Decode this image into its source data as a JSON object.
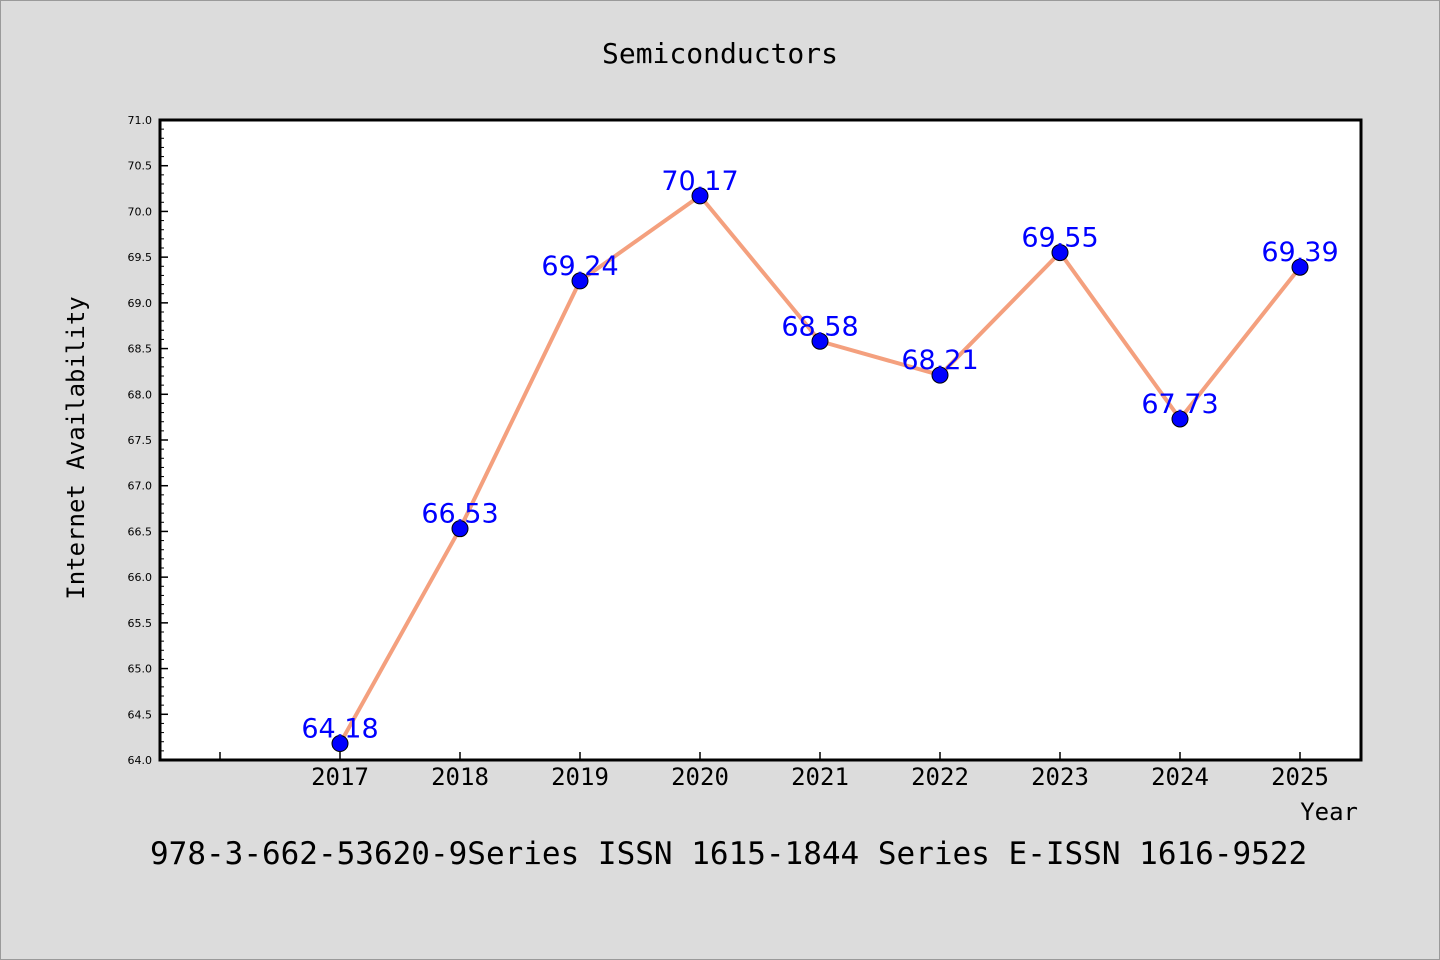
{
  "chart_data": {
    "type": "line",
    "title": "Semiconductors",
    "xlabel": "Year",
    "ylabel": "Internet Availability",
    "x": [
      "2017",
      "2018",
      "2019",
      "2020",
      "2021",
      "2022",
      "2023",
      "2024",
      "2025"
    ],
    "series": [
      {
        "values": [
          64.18,
          66.53,
          69.24,
          70.17,
          68.58,
          68.21,
          69.55,
          67.73,
          69.39
        ]
      }
    ],
    "data_labels": [
      "64.18",
      "66.53",
      "69.24",
      "70.17",
      "68.58",
      "68.21",
      "69.55",
      "67.73",
      "69.39"
    ],
    "ylim": [
      64.0,
      71.0
    ],
    "yticks": [
      "64.0",
      "64.5",
      "65.0",
      "65.5",
      "66.0",
      "66.5",
      "67.0",
      "67.5",
      "68.0",
      "68.5",
      "69.0",
      "69.5",
      "70.0",
      "70.5",
      "71.0"
    ],
    "grid": false,
    "legend": "none",
    "colors": {
      "line": "#f4a07e",
      "marker": "#0000ff",
      "label": "#0000ff",
      "background": "#dcdcdc",
      "plot": "#ffffff"
    }
  },
  "footer_text": "978-3-662-53620-9Series ISSN 1615-1844 Series E-ISSN 1616-9522"
}
